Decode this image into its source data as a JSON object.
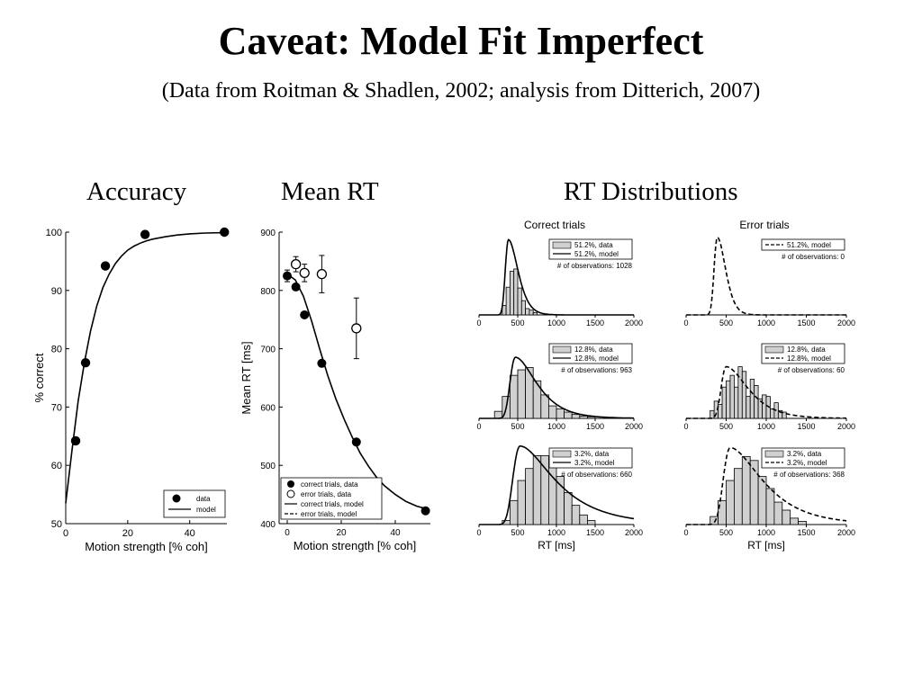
{
  "slide": {
    "title": "Caveat: Model Fit Imperfect",
    "subtitle": "(Data from Roitman & Shadlen, 2002; analysis from Ditterich, 2007)",
    "sections": {
      "accuracy": "Accuracy",
      "mean_rt": "Mean RT",
      "rt_distributions": "RT Distributions"
    }
  },
  "chart_data": [
    {
      "type": "scatter",
      "xlabel": "Motion strength [% coh]",
      "ylabel": "% correct",
      "xlim": [
        0,
        52
      ],
      "ylim": [
        50,
        100
      ],
      "xticks": [
        0,
        20,
        40
      ],
      "yticks": [
        50,
        60,
        70,
        80,
        90,
        100
      ],
      "legend": {
        "position": "bottom-right",
        "entries": [
          "data",
          "model"
        ]
      },
      "series": [
        {
          "name": "data",
          "x": [
            3.2,
            6.4,
            12.8,
            25.6,
            51.2
          ],
          "y": [
            64.2,
            77.6,
            94.2,
            99.6,
            100
          ]
        },
        {
          "name": "model",
          "style": "line",
          "x": [
            0,
            2,
            4,
            6,
            8,
            10,
            12,
            14,
            16,
            18,
            20,
            22,
            24,
            26,
            28,
            32,
            36,
            40,
            45,
            51.2
          ],
          "y": [
            53.5,
            62.5,
            71,
            77.6,
            83,
            87.3,
            90.5,
            92.8,
            94.6,
            95.9,
            96.9,
            97.6,
            98.1,
            98.5,
            98.8,
            99.2,
            99.5,
            99.7,
            99.85,
            99.9
          ]
        }
      ]
    },
    {
      "type": "scatter",
      "xlabel": "Motion strength [% coh]",
      "ylabel": "Mean RT [ms]",
      "xlim": [
        -3,
        53
      ],
      "ylim": [
        400,
        900
      ],
      "xticks": [
        0,
        20,
        40
      ],
      "yticks": [
        400,
        500,
        600,
        700,
        800,
        900
      ],
      "legend": {
        "position": "bottom-left",
        "entries": [
          "correct trials, data",
          "error trials, data",
          "correct trials, model",
          "error trials, model"
        ]
      },
      "series": [
        {
          "name": "correct trials, data",
          "x": [
            0,
            3.2,
            6.4,
            12.8,
            25.6,
            51.2
          ],
          "y": [
            825,
            806,
            758,
            675,
            540,
            422
          ],
          "err": [
            10,
            0,
            0,
            0,
            0,
            0
          ]
        },
        {
          "name": "error trials, data",
          "x": [
            3.2,
            6.4,
            12.8,
            25.6
          ],
          "y": [
            845,
            830,
            828,
            735
          ],
          "err": [
            13,
            15,
            32,
            52
          ]
        },
        {
          "name": "correct trials, model",
          "style": "line",
          "x": [
            0,
            3,
            6,
            9,
            12,
            15,
            18,
            21,
            24,
            27,
            30,
            33,
            36,
            40,
            44,
            48,
            51.2
          ],
          "y": [
            828,
            818,
            790,
            748,
            700,
            654,
            614,
            580,
            549,
            521,
            499,
            480,
            465,
            450,
            438,
            430,
            426
          ]
        },
        {
          "name": "error trials, model",
          "style": "dashed",
          "x": [],
          "y": []
        }
      ]
    },
    {
      "type": "bar",
      "title": "Correct trials",
      "xlabel": "",
      "xlim": [
        0,
        2000
      ],
      "xticks": [
        0,
        500,
        1000,
        1500,
        2000
      ],
      "legend": {
        "position": "top-right",
        "entries": [
          "51.2%, data",
          "51.2%, model"
        ]
      },
      "annotation": "# of observations: 1028",
      "bins": {
        "start": 300,
        "width": 50,
        "heights": [
          0.12,
          0.35,
          0.55,
          0.58,
          0.34,
          0.18,
          0.08,
          0.06,
          0.03
        ]
      },
      "model_curve": {
        "style": "solid",
        "peak_ms": 380,
        "rise_ms": 45,
        "fall_ms": 120,
        "peak_height": 0.95
      }
    },
    {
      "type": "bar",
      "title": "Error trials",
      "xlabel": "",
      "xlim": [
        0,
        2000
      ],
      "xticks": [
        0,
        500,
        1000,
        1500,
        2000
      ],
      "legend": {
        "position": "top-right",
        "entries": [
          "51.2%, model"
        ]
      },
      "annotation": "# of observations: 0",
      "bins": {
        "start": 0,
        "width": 100,
        "heights": []
      },
      "model_curve": {
        "style": "dashed",
        "peak_ms": 390,
        "rise_ms": 45,
        "fall_ms": 100,
        "peak_height": 0.98
      }
    },
    {
      "type": "bar",
      "xlabel": "",
      "xlim": [
        0,
        2000
      ],
      "xticks": [
        0,
        500,
        1000,
        1500,
        2000
      ],
      "legend": {
        "position": "top-right",
        "entries": [
          "12.8%, data",
          "12.8%, model"
        ]
      },
      "annotation": "# of observations: 963",
      "bins": {
        "start": 200,
        "width": 100,
        "heights": [
          0.09,
          0.28,
          0.55,
          0.62,
          0.65,
          0.48,
          0.3,
          0.16,
          0.12,
          0.08,
          0.05,
          0.03,
          0.02
        ]
      },
      "model_curve": {
        "style": "solid",
        "peak_ms": 470,
        "rise_ms": 80,
        "fall_ms": 260,
        "peak_height": 0.78
      }
    },
    {
      "type": "bar",
      "xlabel": "",
      "xlim": [
        0,
        2000
      ],
      "xticks": [
        0,
        500,
        1000,
        1500,
        2000
      ],
      "legend": {
        "position": "top-right",
        "entries": [
          "12.8%, data",
          "12.8%, model"
        ]
      },
      "annotation": "# of observations: 60",
      "bins": {
        "start": 300,
        "width": 50,
        "heights": [
          0.1,
          0.22,
          0.18,
          0.4,
          0.48,
          0.55,
          0.4,
          0.66,
          0.6,
          0.28,
          0.5,
          0.42,
          0.25,
          0.3,
          0.28,
          0.12,
          0.2,
          0.1,
          0.08
        ]
      },
      "model_curve": {
        "style": "dashed",
        "peak_ms": 500,
        "rise_ms": 70,
        "fall_ms": 260,
        "peak_height": 0.66
      }
    },
    {
      "type": "bar",
      "xlabel": "RT [ms]",
      "xlim": [
        0,
        2000
      ],
      "xticks": [
        0,
        500,
        1000,
        1500,
        2000
      ],
      "legend": {
        "position": "top-right",
        "entries": [
          "3.2%, data",
          "3.2%, model"
        ]
      },
      "annotation": "# of observations: 660",
      "bins": {
        "start": 300,
        "width": 100,
        "heights": [
          0.05,
          0.3,
          0.55,
          0.7,
          0.86,
          0.86,
          0.82,
          0.6,
          0.4,
          0.24,
          0.12,
          0.05
        ]
      },
      "model_curve": {
        "style": "solid",
        "peak_ms": 530,
        "rise_ms": 110,
        "fall_ms": 420,
        "peak_height": 0.98
      }
    },
    {
      "type": "bar",
      "xlabel": "RT [ms]",
      "xlim": [
        0,
        2000
      ],
      "xticks": [
        0,
        500,
        1000,
        1500,
        2000
      ],
      "legend": {
        "position": "top-right",
        "entries": [
          "3.2%, data",
          "3.2%, model"
        ]
      },
      "annotation": "# of observations: 368",
      "bins": {
        "start": 300,
        "width": 100,
        "heights": [
          0.1,
          0.3,
          0.55,
          0.7,
          0.85,
          0.8,
          0.6,
          0.45,
          0.28,
          0.18,
          0.08,
          0.04
        ]
      },
      "model_curve": {
        "style": "dashed",
        "peak_ms": 550,
        "rise_ms": 100,
        "fall_ms": 380,
        "peak_height": 0.96
      }
    }
  ]
}
